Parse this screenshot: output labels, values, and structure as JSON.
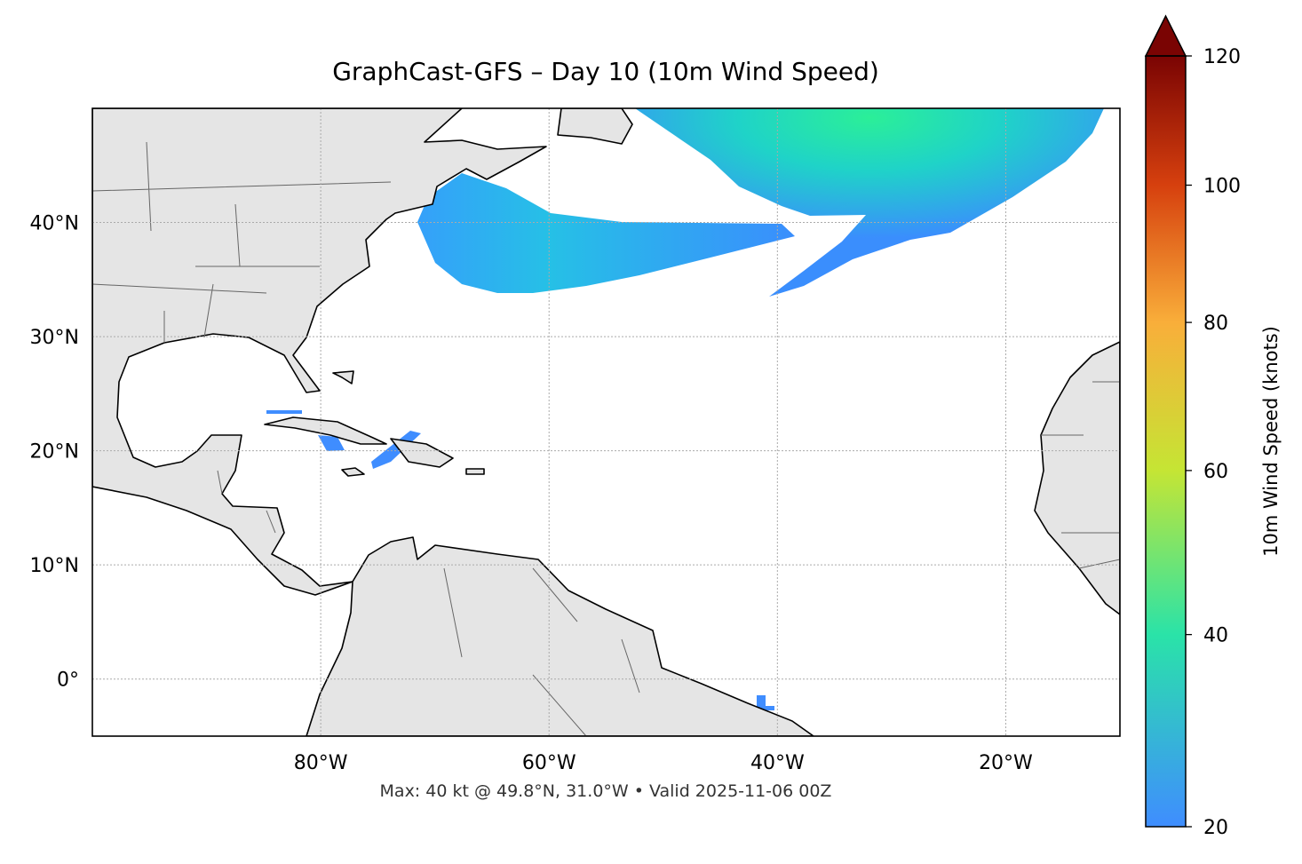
{
  "chart_data": {
    "type": "map",
    "title": "GraphCast-GFS – Day 10 (10m Wind Speed)",
    "footer": "Max: 40 kt @ 49.8°N, 31.0°W • Valid 2025-11-06 00Z",
    "xlim": [
      -100,
      -10
    ],
    "ylim": [
      -5,
      50
    ],
    "xticks": [
      {
        "value": -80,
        "label": "80°W"
      },
      {
        "value": -60,
        "label": "60°W"
      },
      {
        "value": -40,
        "label": "40°W"
      },
      {
        "value": -20,
        "label": "20°W"
      }
    ],
    "yticks": [
      {
        "value": 0,
        "label": "0°"
      },
      {
        "value": 10,
        "label": "10°N"
      },
      {
        "value": 20,
        "label": "20°N"
      },
      {
        "value": 30,
        "label": "30°N"
      },
      {
        "value": 40,
        "label": "40°N"
      }
    ],
    "grid": true,
    "colorbar": {
      "label": "10m Wind Speed (knots)",
      "lim": [
        20,
        120
      ],
      "ticks": [
        20,
        40,
        60,
        80,
        100,
        120
      ],
      "colors": [
        "#3f8dff",
        "#2ae3a8",
        "#c5e534",
        "#f9ae3a",
        "#d6400e",
        "#7a0403"
      ],
      "scale": "power",
      "exponent": 0.7,
      "extend": "max"
    }
  }
}
